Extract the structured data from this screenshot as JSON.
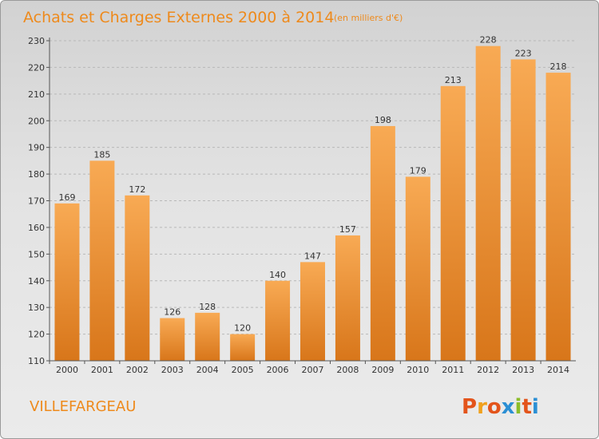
{
  "title": "Achats et Charges Externes 2000 à 2014",
  "unit": "(en milliers d'€)",
  "commune": "VILLEFARGEAU",
  "logo": "Proxiti",
  "colors": {
    "accent": "#ee8a1c",
    "bar_light": "#f8aa54",
    "bar_dark": "#d8761a",
    "logo_letters": [
      "#e3541b",
      "#f0a11d",
      "#e3541b",
      "#2b8fd4",
      "#8cbd2a",
      "#e3541b",
      "#2b8fd4"
    ]
  },
  "chart_data": {
    "type": "bar",
    "categories": [
      "2000",
      "2001",
      "2002",
      "2003",
      "2004",
      "2005",
      "2006",
      "2007",
      "2008",
      "2009",
      "2010",
      "2011",
      "2012",
      "2013",
      "2014"
    ],
    "values": [
      169,
      185,
      172,
      126,
      128,
      120,
      140,
      147,
      157,
      198,
      179,
      213,
      228,
      223,
      218
    ],
    "ylim": [
      110,
      230
    ],
    "yticks": [
      110,
      120,
      130,
      140,
      150,
      160,
      170,
      180,
      190,
      200,
      210,
      220,
      230
    ],
    "grid": "horizontal dashed",
    "xlabel": "",
    "ylabel": ""
  }
}
